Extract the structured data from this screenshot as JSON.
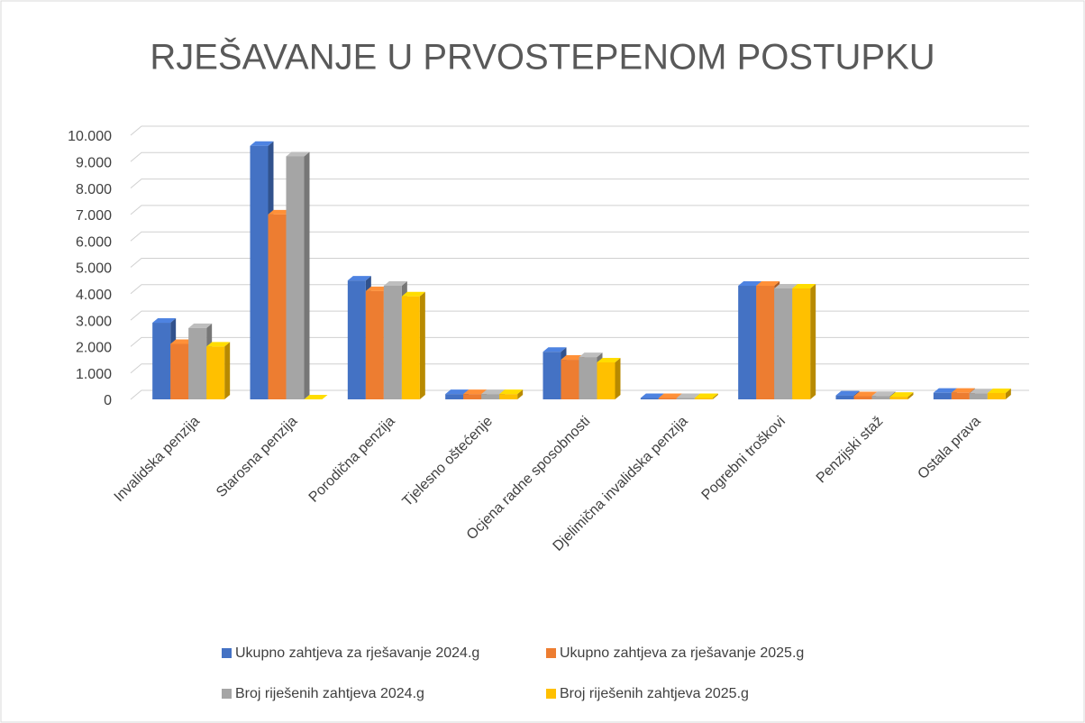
{
  "chart_data": {
    "type": "bar3d",
    "title": "RJEŠAVANJE U PRVOSTEPENOM POSTUPKU",
    "categories": [
      "Invalidska penzija",
      "Starosna penzija",
      "Porodična penzija",
      "Tjelesno oštećenje",
      "Ocjena radne sposobnosti",
      "Djelimična invalidska penzija",
      "Pogrebni troškovi",
      "Penzijski staž",
      "Ostala prava"
    ],
    "series": [
      {
        "name": "Ukupno zahtjeva za rješavanje 2024.g",
        "color": "#4472c4",
        "values": [
          2900,
          9600,
          4500,
          200,
          1800,
          50,
          4300,
          150,
          250
        ]
      },
      {
        "name": "Ukupno zahtjeva za rješavanje 2025.g",
        "color": "#ed7d31",
        "values": [
          2100,
          7000,
          4100,
          200,
          1500,
          50,
          4300,
          120,
          250
        ]
      },
      {
        "name": "Broj riješenih zahtjeva 2024.g",
        "color": "#a5a5a5",
        "values": [
          2700,
          9200,
          4300,
          200,
          1600,
          50,
          4200,
          130,
          230
        ]
      },
      {
        "name": "Broj riješenih zahtjeva 2025.g",
        "color": "#ffc000",
        "values": [
          2000,
          0,
          3900,
          200,
          1400,
          50,
          4200,
          100,
          240
        ]
      }
    ],
    "ylim": [
      0,
      10000
    ],
    "yticks": [
      0,
      {
        "value": 1000,
        "label": "1.000"
      },
      {
        "value": 2000,
        "label": "2.000"
      },
      {
        "value": 3000,
        "label": "3.000"
      },
      {
        "value": 4000,
        "label": "4.000"
      },
      {
        "value": 5000,
        "label": "5.000"
      },
      {
        "value": 6000,
        "label": "6.000"
      },
      {
        "value": 7000,
        "label": "7.000"
      },
      {
        "value": 8000,
        "label": "8.000"
      },
      {
        "value": 9000,
        "label": "9.000"
      },
      {
        "value": 10000,
        "label": "10.000"
      }
    ],
    "grid": true,
    "legend": "bottom"
  }
}
